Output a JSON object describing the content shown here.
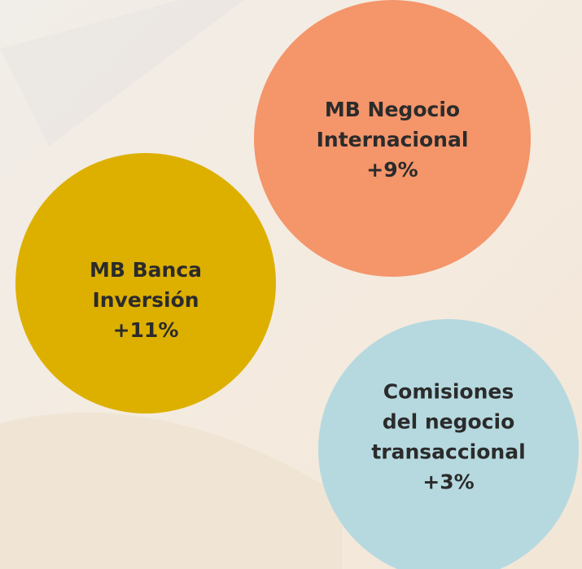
{
  "nodes": [
    {
      "lines": [
        "MB Negocio",
        "Internacional",
        "+9%"
      ]
    },
    {
      "lines": [
        "MB Banca",
        "Inversión",
        "+11%"
      ]
    },
    {
      "lines": [
        "Comisiones",
        "del negocio",
        "transaccional",
        "+3%"
      ]
    }
  ]
}
